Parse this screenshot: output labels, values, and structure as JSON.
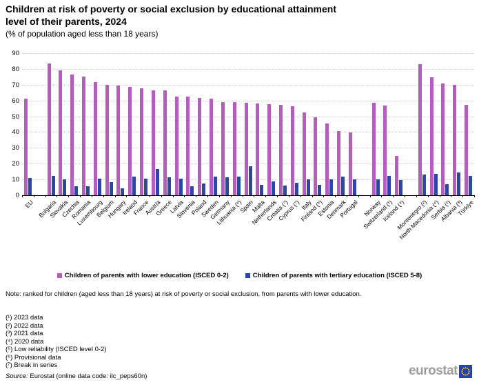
{
  "header": {
    "title": "Children at risk of poverty or social exclusion by educational attainment level of their parents, 2024",
    "subtitle": "(% of population aged less than 18 years)"
  },
  "chart_data": {
    "type": "bar",
    "title": "Children at risk of poverty or social exclusion by educational attainment level of their parents, 2024",
    "subtitle": "(% of population aged less than 18 years)",
    "xlabel": "",
    "ylabel": "",
    "grid": true,
    "legend_position": "bottom",
    "y_axis": {
      "min": 0,
      "max": 90,
      "step": 10
    },
    "series_meta": [
      {
        "name": "Children of parents with lower education (ISCED 0-2)",
        "color": "#b65cbe"
      },
      {
        "name": "Children of parents with tertiary education (ISCED 5-8)",
        "color": "#2b46a5"
      }
    ],
    "groups": [
      {
        "label": "EU",
        "values": [
          61.2,
          11.0
        ],
        "gap_after": true
      },
      {
        "label": "Bulgaria",
        "values": [
          83.3,
          12.2
        ]
      },
      {
        "label": "Slovakia",
        "values": [
          79.1,
          10.1
        ]
      },
      {
        "label": "Czechia",
        "values": [
          76.4,
          5.9
        ]
      },
      {
        "label": "Romania",
        "values": [
          75.3,
          5.9
        ]
      },
      {
        "label": "Luxembourg",
        "values": [
          71.6,
          10.7
        ]
      },
      {
        "label": "Belgium",
        "values": [
          70.1,
          8.2
        ]
      },
      {
        "label": "Hungary",
        "values": [
          69.6,
          4.5
        ]
      },
      {
        "label": "Ireland",
        "values": [
          68.5,
          11.6
        ]
      },
      {
        "label": "France",
        "values": [
          67.9,
          10.4
        ]
      },
      {
        "label": "Austria",
        "values": [
          66.5,
          16.4
        ]
      },
      {
        "label": "Greece",
        "values": [
          66.4,
          11.4
        ]
      },
      {
        "label": "Latvia",
        "values": [
          62.4,
          10.6
        ]
      },
      {
        "label": "Slovenia",
        "values": [
          62.3,
          5.7
        ]
      },
      {
        "label": "Poland",
        "values": [
          61.4,
          7.4
        ]
      },
      {
        "label": "Sweden",
        "values": [
          61.1,
          11.8
        ]
      },
      {
        "label": "Germany",
        "values": [
          59.1,
          11.5
        ]
      },
      {
        "label": "Lithuania (⁶)",
        "values": [
          58.8,
          11.9
        ]
      },
      {
        "label": "Spain",
        "values": [
          58.4,
          18.3
        ]
      },
      {
        "label": "Malta",
        "values": [
          57.9,
          6.4
        ]
      },
      {
        "label": "Netherlands",
        "values": [
          57.5,
          8.7
        ]
      },
      {
        "label": "Croatia (⁷)",
        "values": [
          57.1,
          6.1
        ]
      },
      {
        "label": "Cyprus (⁷)",
        "values": [
          56.3,
          7.9
        ]
      },
      {
        "label": "Italy",
        "values": [
          52.5,
          10.0
        ]
      },
      {
        "label": "Finland (⁵)",
        "values": [
          49.2,
          6.6
        ]
      },
      {
        "label": "Estonia",
        "values": [
          45.6,
          9.9
        ]
      },
      {
        "label": "Denmark",
        "values": [
          40.8,
          11.8
        ]
      },
      {
        "label": "Portugal",
        "values": [
          39.6,
          10.2
        ],
        "gap_after": true
      },
      {
        "label": "Norway",
        "values": [
          58.4,
          9.9
        ]
      },
      {
        "label": "Switzerland (¹)",
        "values": [
          56.8,
          12.1
        ]
      },
      {
        "label": "Iceland (⁴)",
        "values": [
          25.1,
          9.6
        ],
        "gap_after": true
      },
      {
        "label": "Montenegro (²)",
        "values": [
          82.8,
          13.1
        ]
      },
      {
        "label": "North Macedonia (⁴)",
        "values": [
          74.7,
          13.4
        ]
      },
      {
        "label": "Serbia (¹)",
        "values": [
          70.9,
          7.0
        ]
      },
      {
        "label": "Albania (³)",
        "values": [
          69.9,
          14.3
        ]
      },
      {
        "label": "Türkiye",
        "values": [
          57.4,
          12.1
        ]
      }
    ]
  },
  "note": {
    "text": "Note: ranked for children (aged less than 18 years) at risk of poverty or social exclusion, from parents with lower education."
  },
  "footnotes": [
    "(¹) 2023 data",
    "(²) 2022 data",
    "(³) 2021 data",
    "(⁴) 2020 data",
    "(⁵) Low reliability (ISCED level 0-2)",
    "(⁶) Provisional data",
    "(⁷) Break in series"
  ],
  "source": {
    "prefix": "Source:",
    "text": " Eurostat (online data code: ilc_peps60n)"
  },
  "logo": {
    "text": "eurostat",
    "flag_blue": "#2644a7",
    "star_yellow": "#ffcc00"
  }
}
